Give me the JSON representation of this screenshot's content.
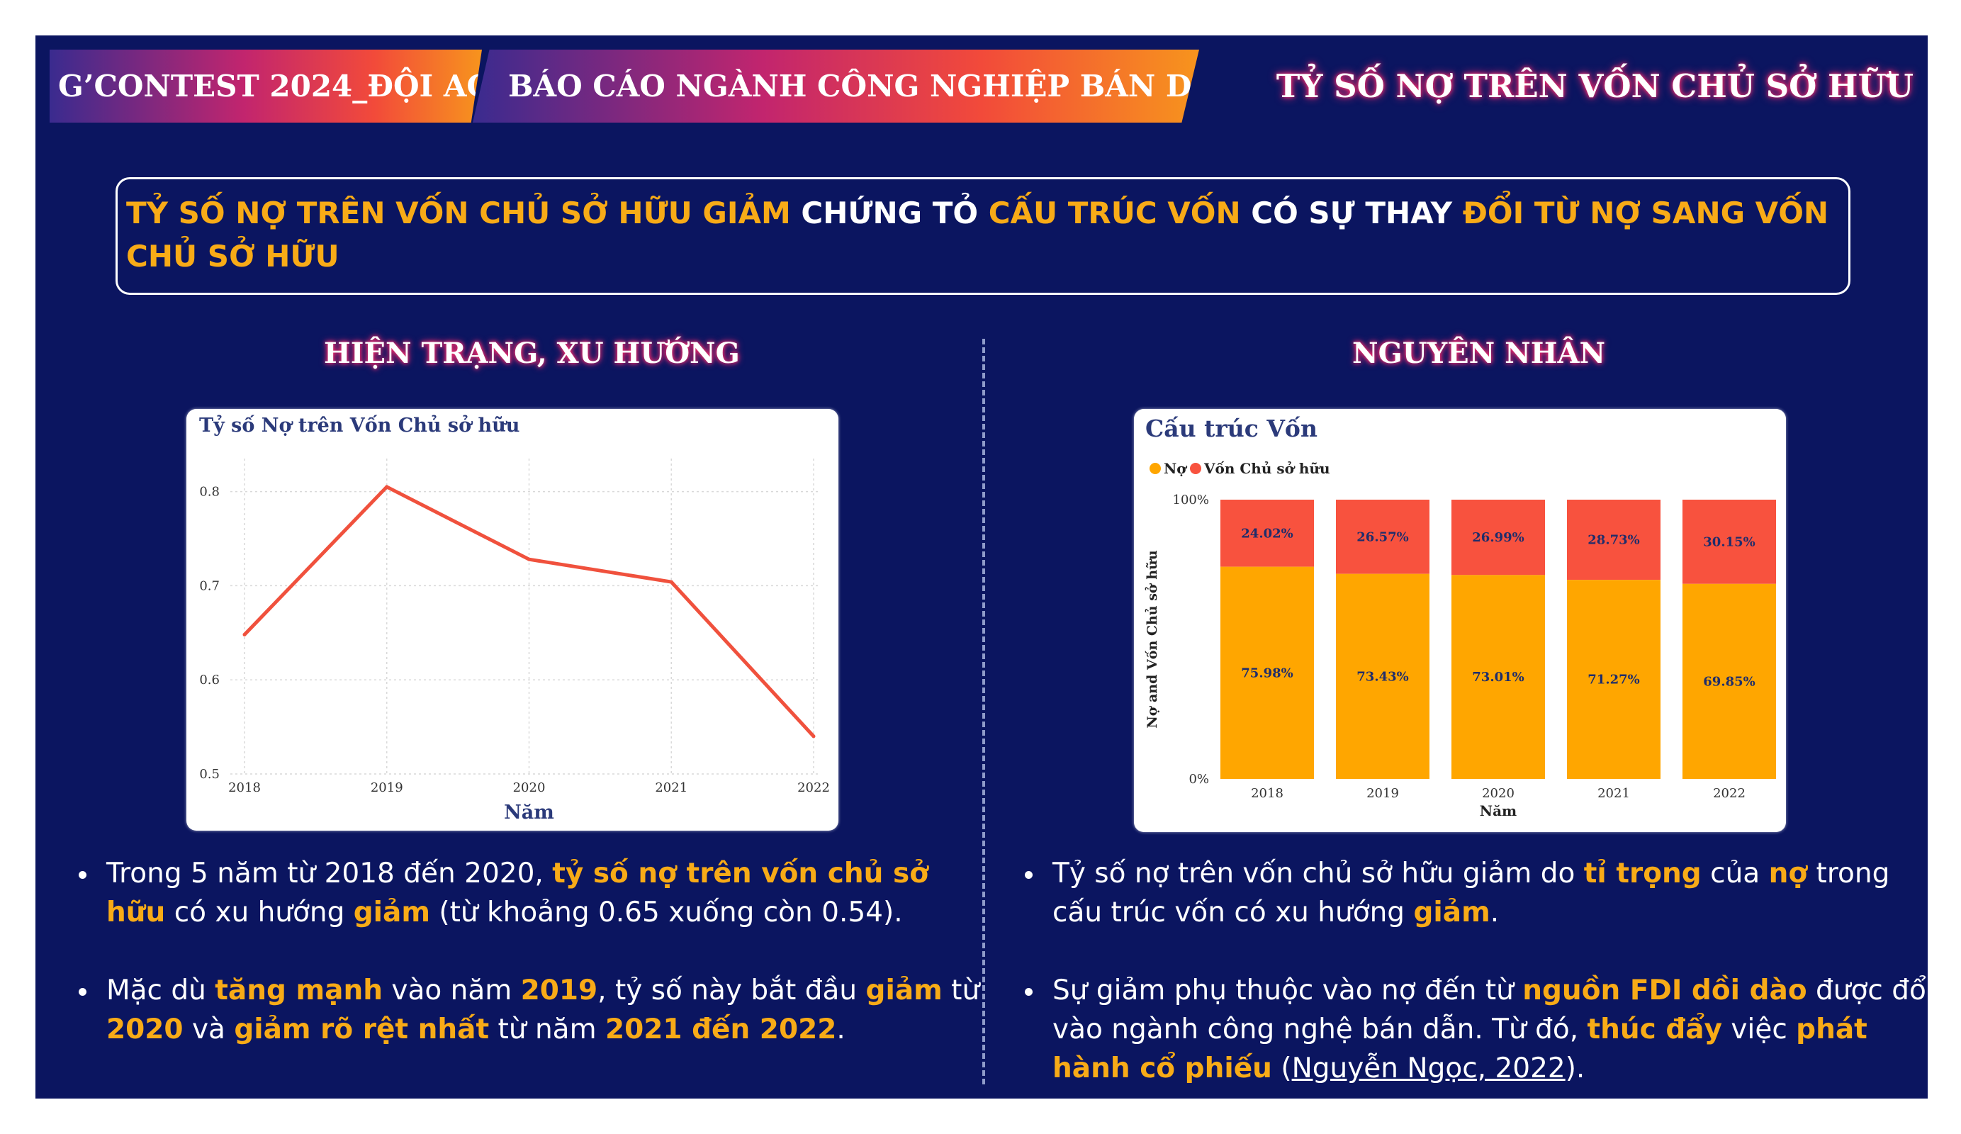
{
  "header": {
    "tag1": "G’CONTEST 2024_ĐỘI AC",
    "tag2": "BÁO CÁO NGÀNH CÔNG NGHIỆP BÁN DẪN",
    "title": "TỶ SỐ NỢ TRÊN VỐN CHỦ SỞ HỮU"
  },
  "headline": {
    "p1": "TỶ SỐ NỢ TRÊN VỐN CHỦ SỞ HỮU GIẢM",
    "p2": " CHỨNG TỎ ",
    "p3": "CẤU TRÚC VỐN",
    "p4": " CÓ SỰ THAY ",
    "p5": "ĐỔI TỪ NỢ SANG VỐN CHỦ SỞ HỮU"
  },
  "left": {
    "title": "HIỆN TRẠNG, XU HƯỚNG",
    "bullets": [
      {
        "t1": "Trong 5 năm từ 2018 đến 2020, ",
        "b1": "tỷ số nợ trên vốn chủ sở hữu",
        "t2": " có xu hướng ",
        "b2": "giảm",
        "t3": " (từ khoảng 0.65 xuống còn 0.54)."
      },
      {
        "t1": "Mặc dù ",
        "b1": "tăng mạnh",
        "t2": " vào năm ",
        "b2": "2019",
        "t3": ", tỷ số này bắt đầu ",
        "b3": "giảm",
        "t4": " từ ",
        "b4": "2020",
        "t5": " và ",
        "b5": "giảm rõ rệt nhất",
        "t6": " từ năm ",
        "b6": "2021 đến 2022",
        "t7": "."
      }
    ]
  },
  "right": {
    "title": "NGUYÊN NHÂN",
    "bullets": [
      {
        "t1": "Tỷ số nợ trên vốn chủ sở hữu giảm do ",
        "b1": "tỉ trọng",
        "t2": " của ",
        "b2": "nợ",
        "t3": " trong cấu trúc vốn có xu hướng ",
        "b3": "giảm",
        "t4": "."
      },
      {
        "t1": "Sự giảm phụ thuộc vào nợ đến từ ",
        "b1": "nguồn FDI dồi dào",
        "t2": " được đổ vào ngành công nghệ bán dẫn. Từ đó, ",
        "b2": "thúc đẩy",
        "t3": " việc ",
        "b3": "phát hành cổ phiếu",
        "t4": " (",
        "u1": "Nguyễn Ngọc, 2022",
        "t5": ")."
      }
    ]
  },
  "chart_data": [
    {
      "type": "line",
      "title": "Tỷ số Nợ trên Vốn Chủ sở hữu",
      "xlabel": "Năm",
      "ylabel": "",
      "x": [
        "2018",
        "2019",
        "2020",
        "2021",
        "2022"
      ],
      "y": [
        0.648,
        0.805,
        0.728,
        0.704,
        0.54
      ],
      "yticks": [
        "0.5",
        "0.6",
        "0.7",
        "0.8"
      ],
      "ylim": [
        0.5,
        0.82
      ],
      "grid": true,
      "color": "#f0513d"
    },
    {
      "type": "bar",
      "stacked": true,
      "title": "Cấu trúc Vốn",
      "xlabel": "Năm",
      "ylabel": "Nợ and Vốn Chủ sở hữu",
      "categories": [
        "2018",
        "2019",
        "2020",
        "2021",
        "2022"
      ],
      "yticks": [
        "0%",
        "100%"
      ],
      "legend_position": "top-left",
      "series": [
        {
          "name": "Nợ",
          "color": "#ffa600",
          "values": [
            75.98,
            73.43,
            73.01,
            71.27,
            69.85
          ],
          "labels": [
            "75.98%",
            "73.43%",
            "73.01%",
            "71.27%",
            "69.85%"
          ]
        },
        {
          "name": "Vốn Chủ sở hữu",
          "color": "#f8523e",
          "values": [
            24.02,
            26.57,
            26.99,
            28.73,
            30.15
          ],
          "labels": [
            "24.02%",
            "26.57%",
            "26.99%",
            "28.73%",
            "30.15%"
          ]
        }
      ]
    }
  ]
}
